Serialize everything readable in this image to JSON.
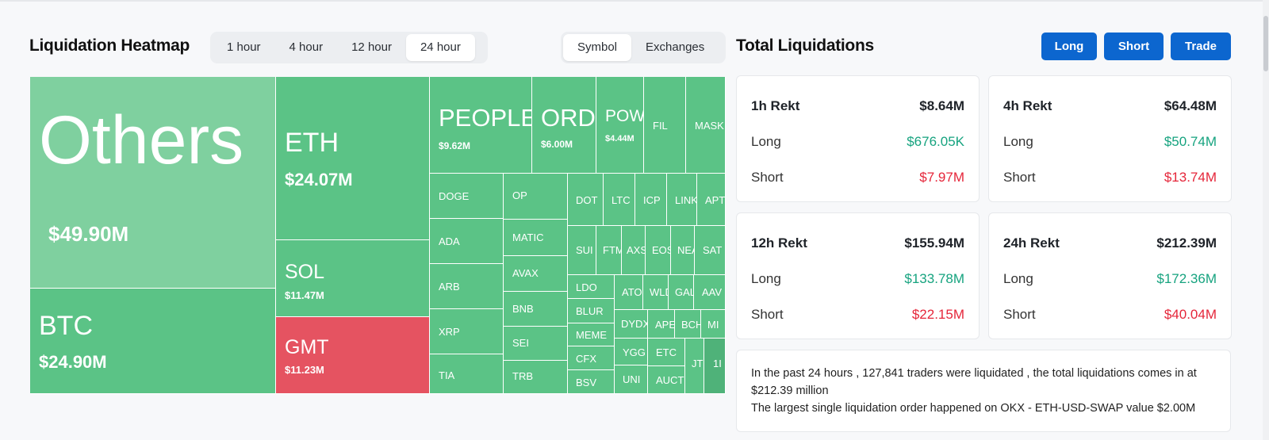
{
  "heatmap": {
    "title": "Liquidation Heatmap",
    "time_tabs": [
      "1 hour",
      "4 hour",
      "12 hour",
      "24 hour"
    ],
    "active_time_tab": "24 hour",
    "view_tabs": [
      "Symbol",
      "Exchanges"
    ],
    "active_view_tab": "Symbol",
    "tiles": {
      "others": {
        "name": "Others",
        "value": "$49.90M"
      },
      "btc": {
        "name": "BTC",
        "value": "$24.90M"
      },
      "eth": {
        "name": "ETH",
        "value": "$24.07M"
      },
      "sol": {
        "name": "SOL",
        "value": "$11.47M"
      },
      "gmt": {
        "name": "GMT",
        "value": "$11.23M"
      },
      "people": {
        "name": "PEOPLE",
        "value": "$9.62M"
      },
      "ordi": {
        "name": "ORDI",
        "value": "$6.00M"
      },
      "pow": {
        "name": "POW",
        "value": "$4.44M"
      },
      "fil": {
        "name": "FIL"
      },
      "mask": {
        "name": "MASK"
      },
      "doge": {
        "name": "DOGE"
      },
      "ada": {
        "name": "ADA"
      },
      "arb": {
        "name": "ARB"
      },
      "xrp": {
        "name": "XRP"
      },
      "tia": {
        "name": "TIA"
      },
      "op": {
        "name": "OP"
      },
      "matic": {
        "name": "MATIC"
      },
      "avax": {
        "name": "AVAX"
      },
      "bnb": {
        "name": "BNB"
      },
      "sei": {
        "name": "SEI"
      },
      "trb": {
        "name": "TRB"
      },
      "dot": {
        "name": "DOT"
      },
      "ltc": {
        "name": "LTC"
      },
      "icp": {
        "name": "ICP"
      },
      "link": {
        "name": "LINK"
      },
      "apt": {
        "name": "APT"
      },
      "sui": {
        "name": "SUI"
      },
      "ftm": {
        "name": "FTM"
      },
      "axs": {
        "name": "AXS"
      },
      "eos": {
        "name": "EOS"
      },
      "near": {
        "name": "NEA"
      },
      "sat": {
        "name": "SAT"
      },
      "ldo": {
        "name": "LDO"
      },
      "blur": {
        "name": "BLUR"
      },
      "meme": {
        "name": "MEME"
      },
      "cfx": {
        "name": "CFX"
      },
      "bsv": {
        "name": "BSV"
      },
      "ato": {
        "name": "ATO"
      },
      "wld": {
        "name": "WLD"
      },
      "gal": {
        "name": "GAL"
      },
      "aav": {
        "name": "AAV"
      },
      "dydx": {
        "name": "DYDX"
      },
      "ape": {
        "name": "APE"
      },
      "bch": {
        "name": "BCH"
      },
      "mi": {
        "name": "MI"
      },
      "ygg": {
        "name": "YGG"
      },
      "uni": {
        "name": "UNI"
      },
      "etc": {
        "name": "ETC"
      },
      "auct": {
        "name": "AUCT"
      },
      "jt": {
        "name": "JT"
      },
      "one": {
        "name": "1I"
      }
    }
  },
  "totals": {
    "title": "Total Liquidations",
    "buttons": {
      "long": "Long",
      "short": "Short",
      "trade": "Trade"
    },
    "cards": [
      {
        "title": "1h Rekt",
        "total": "$8.64M",
        "long_label": "Long",
        "long": "$676.05K",
        "short_label": "Short",
        "short": "$7.97M"
      },
      {
        "title": "4h Rekt",
        "total": "$64.48M",
        "long_label": "Long",
        "long": "$50.74M",
        "short_label": "Short",
        "short": "$13.74M"
      },
      {
        "title": "12h Rekt",
        "total": "$155.94M",
        "long_label": "Long",
        "long": "$133.78M",
        "short_label": "Short",
        "short": "$22.15M"
      },
      {
        "title": "24h Rekt",
        "total": "$212.39M",
        "long_label": "Long",
        "long": "$172.36M",
        "short_label": "Short",
        "short": "$40.04M"
      }
    ],
    "summary_line1": "In the past 24 hours , 127,841 traders were liquidated , the total liquidations comes in at $212.39 million",
    "summary_line2": "The largest single liquidation order happened on OKX - ETH-USD-SWAP value $2.00M"
  },
  "colors": {
    "accent": "#0c66cf",
    "long_green": "#16a37f",
    "short_red": "#e5263a",
    "tile_green": "#5bc386",
    "tile_red": "#e55361"
  }
}
